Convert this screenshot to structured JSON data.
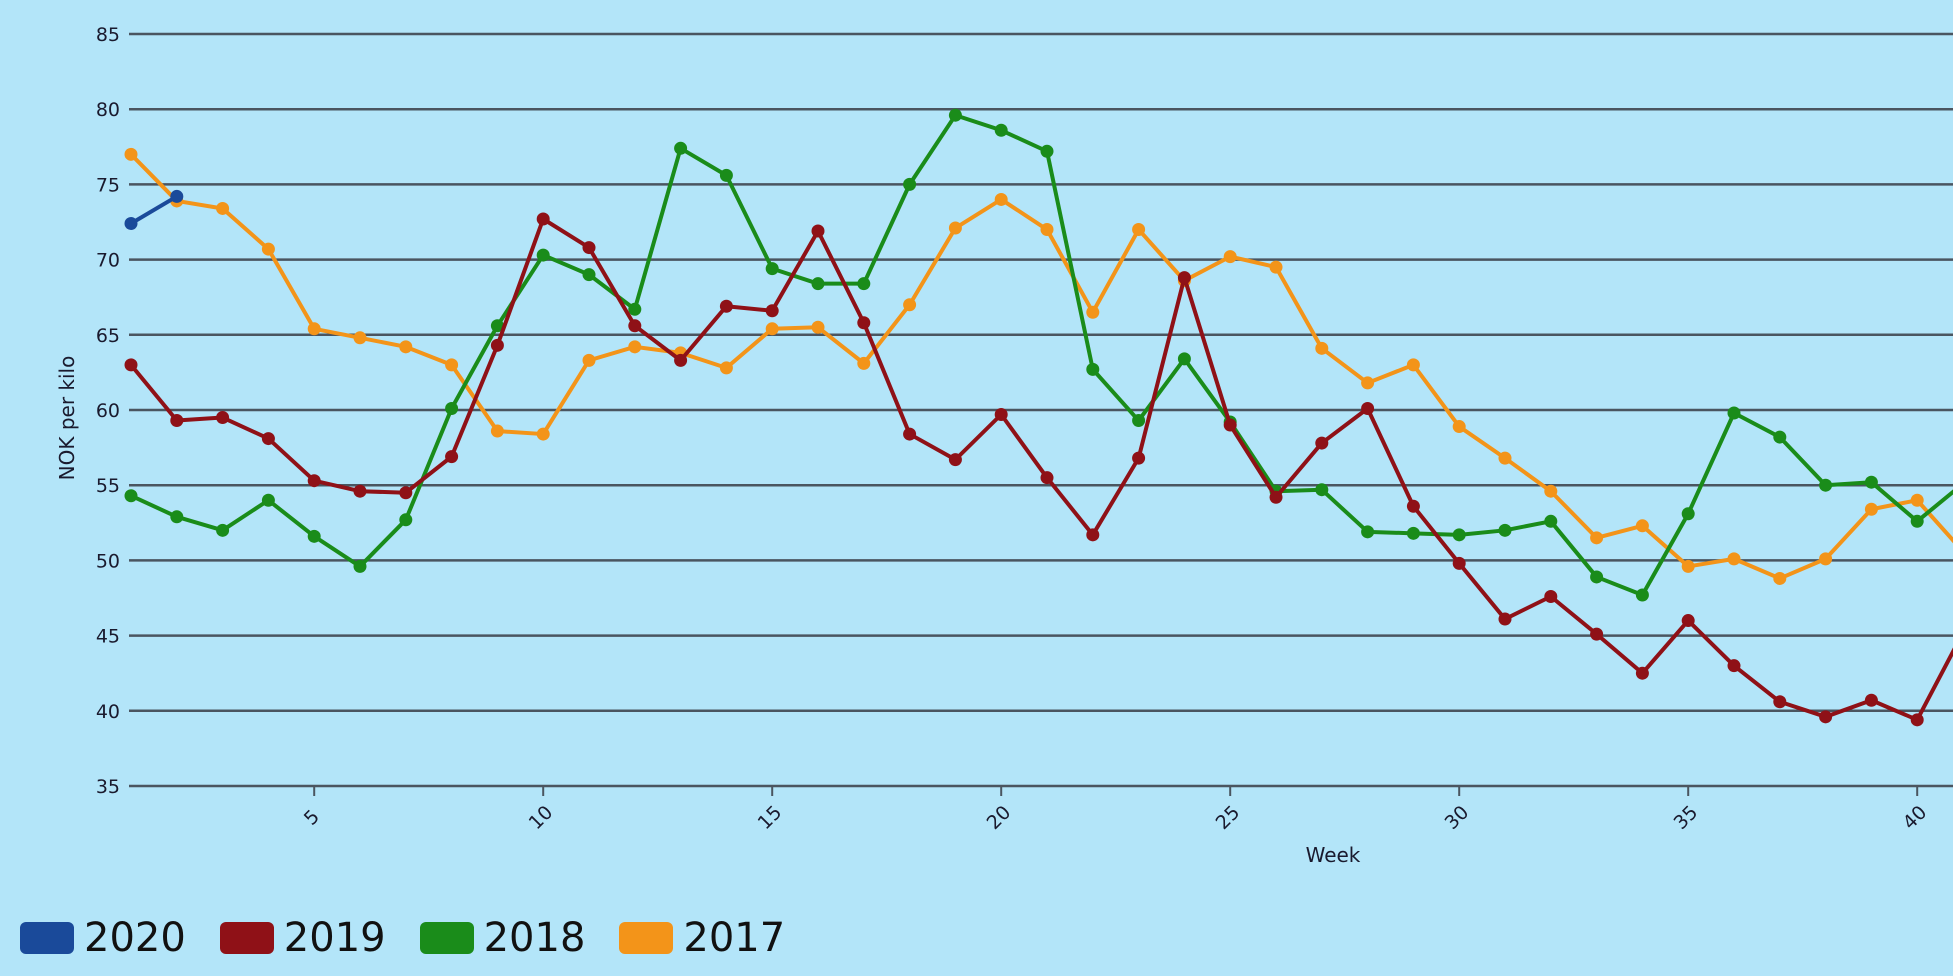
{
  "chart_data": {
    "type": "line",
    "title": "",
    "xlabel": "Week",
    "ylabel": "NOK per kilo",
    "ylim": [
      35,
      85
    ],
    "yticks": [
      35,
      40,
      45,
      50,
      55,
      60,
      65,
      70,
      75,
      80,
      85
    ],
    "xticks": [
      5,
      10,
      15,
      20,
      25,
      30,
      35,
      40
    ],
    "xlim": [
      1,
      40.75
    ],
    "grid": true,
    "legend_position": "bottom-left",
    "x": [
      1,
      2,
      3,
      4,
      5,
      6,
      7,
      8,
      9,
      10,
      11,
      12,
      13,
      14,
      15,
      16,
      17,
      18,
      19,
      20,
      21,
      22,
      23,
      24,
      25,
      26,
      27,
      28,
      29,
      30,
      31,
      32,
      33,
      34,
      35,
      36,
      37,
      38,
      39,
      40,
      41
    ],
    "series": [
      {
        "name": "2020",
        "color": "#1a4a9a",
        "values": [
          72.4,
          74.2
        ]
      },
      {
        "name": "2019",
        "color": "#8f1117",
        "values": [
          63.0,
          59.3,
          59.5,
          58.1,
          55.3,
          54.6,
          54.5,
          56.9,
          64.3,
          72.7,
          70.8,
          65.6,
          63.3,
          66.9,
          66.6,
          71.9,
          65.8,
          58.4,
          56.7,
          59.7,
          55.5,
          51.7,
          56.8,
          68.8,
          59.0,
          54.2,
          57.8,
          60.1,
          53.6,
          49.8,
          46.1,
          47.6,
          45.1,
          42.5,
          46.0,
          43.0,
          40.6,
          39.6,
          40.7,
          39.4,
          45.2
        ]
      },
      {
        "name": "2018",
        "color": "#1a8c1a",
        "values": [
          54.3,
          52.9,
          52.0,
          54.0,
          51.6,
          49.6,
          52.7,
          60.1,
          65.6,
          70.3,
          69.0,
          66.7,
          77.4,
          75.6,
          69.4,
          68.4,
          68.4,
          75.0,
          79.6,
          78.6,
          77.2,
          62.7,
          59.3,
          63.4,
          59.2,
          54.6,
          54.7,
          51.9,
          51.8,
          51.7,
          52.0,
          52.6,
          48.9,
          47.7,
          53.1,
          59.8,
          58.2,
          55.0,
          55.2,
          52.6,
          55.1
        ]
      },
      {
        "name": "2017",
        "color": "#f39419",
        "values": [
          77.0,
          73.9,
          73.4,
          70.7,
          65.4,
          64.8,
          64.2,
          63.0,
          58.6,
          58.4,
          63.3,
          64.2,
          63.8,
          62.8,
          65.4,
          65.5,
          63.1,
          67.0,
          72.1,
          74.0,
          72.0,
          66.5,
          72.0,
          68.6,
          70.2,
          69.5,
          64.1,
          61.8,
          63.0,
          58.9,
          56.8,
          54.6,
          51.5,
          52.3,
          49.6,
          50.1,
          48.8,
          50.1,
          53.4,
          54.0,
          50.6
        ]
      }
    ]
  },
  "axes": {
    "y_title": "NOK per kilo",
    "x_title": "Week"
  },
  "legend": {
    "items": [
      {
        "label": "2020",
        "color": "#1a4a9a"
      },
      {
        "label": "2019",
        "color": "#8f1117"
      },
      {
        "label": "2018",
        "color": "#1a8c1a"
      },
      {
        "label": "2017",
        "color": "#f39419"
      }
    ]
  },
  "colors": {
    "background": "#b3e5f9",
    "gridline": "#4a5560",
    "text": "#1a1a2e"
  }
}
